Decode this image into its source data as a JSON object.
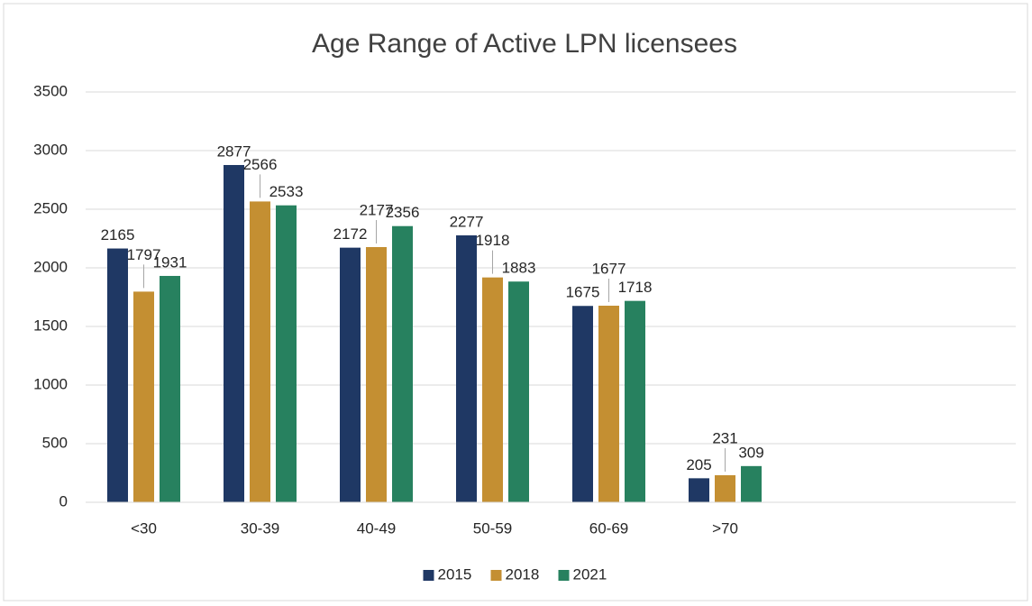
{
  "chart_data": {
    "type": "bar",
    "title": "Age Range of Active LPN licensees",
    "categories": [
      "<30",
      "30-39",
      "40-49",
      "50-59",
      "60-69",
      ">70",
      null,
      null
    ],
    "series": [
      {
        "name": "2015",
        "color": "#1f3864",
        "values": [
          2165,
          2877,
          2172,
          2277,
          1675,
          205,
          null,
          null
        ]
      },
      {
        "name": "2018",
        "color": "#c48f32",
        "values": [
          1797,
          2566,
          2177,
          1918,
          1677,
          231,
          null,
          null
        ]
      },
      {
        "name": "2021",
        "color": "#27815f",
        "values": [
          1931,
          2533,
          2356,
          1883,
          1718,
          309,
          null,
          null
        ]
      }
    ],
    "ylim": [
      0,
      3500
    ],
    "yticks": [
      0,
      500,
      1000,
      1500,
      2000,
      2500,
      3000,
      3500
    ],
    "grid": true,
    "legend": "bottom"
  }
}
